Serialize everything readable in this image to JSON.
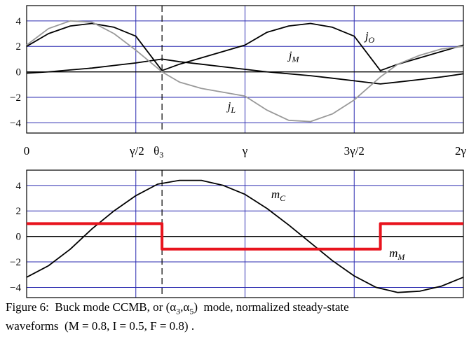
{
  "chart_data": [
    {
      "type": "line",
      "title": "",
      "xlabel": "",
      "ylabel": "",
      "xlim": [
        0,
        2
      ],
      "ylim": [
        -4.8,
        5.2
      ],
      "x_unit": "gamma",
      "y_ticks": [
        4,
        2,
        0,
        -2,
        -4
      ],
      "y_tick_labels": [
        "4",
        "2",
        "0",
        "−2",
        "−4"
      ],
      "x_ticks": [
        0,
        0.5,
        0.62,
        1,
        1.5,
        2
      ],
      "x_tick_labels": [
        "0",
        "γ/2",
        "θ",
        "γ",
        "3γ/2",
        "2γ"
      ],
      "x_tick_subscripts": [
        "",
        "",
        "3",
        "",
        "",
        ""
      ],
      "gridlines_x": [
        0.5,
        1,
        1.5
      ],
      "gridlines_y": [
        -4,
        -2,
        0,
        2,
        4
      ],
      "dashed_marker_x": 0.62,
      "grid": true,
      "series": [
        {
          "name": "j",
          "subscript": "O",
          "color": "#000000",
          "x": [
            0,
            0.1,
            0.2,
            0.3,
            0.4,
            0.5,
            0.62,
            0.7,
            0.8,
            0.9,
            1.0,
            1.1,
            1.2,
            1.3,
            1.4,
            1.5,
            1.62,
            1.7,
            1.8,
            1.9,
            2.0
          ],
          "y": [
            2.0,
            3.0,
            3.6,
            3.8,
            3.5,
            2.8,
            0.1,
            0.6,
            1.1,
            1.6,
            2.1,
            3.1,
            3.6,
            3.8,
            3.5,
            2.8,
            0.1,
            0.6,
            1.1,
            1.6,
            2.1
          ]
        },
        {
          "name": "j",
          "subscript": "M",
          "color": "#000000",
          "x": [
            0,
            0.1,
            0.2,
            0.3,
            0.4,
            0.5,
            0.62,
            0.7,
            0.8,
            0.9,
            1.0,
            1.1,
            1.2,
            1.3,
            1.4,
            1.5,
            1.62,
            1.7,
            1.8,
            1.9,
            2.0
          ],
          "y": [
            -0.1,
            0.0,
            0.15,
            0.3,
            0.5,
            0.7,
            1.0,
            0.8,
            0.6,
            0.4,
            0.2,
            0.0,
            -0.15,
            -0.3,
            -0.5,
            -0.7,
            -0.95,
            -0.8,
            -0.6,
            -0.4,
            -0.15
          ]
        },
        {
          "name": "j",
          "subscript": "L",
          "color": "#999999",
          "x": [
            0,
            0.1,
            0.2,
            0.3,
            0.4,
            0.5,
            0.62,
            0.7,
            0.8,
            0.9,
            1.0,
            1.1,
            1.2,
            1.3,
            1.4,
            1.5,
            1.62,
            1.7,
            1.8,
            1.9,
            2.0
          ],
          "y": [
            2.1,
            3.4,
            4.0,
            3.9,
            3.0,
            1.7,
            0.0,
            -0.8,
            -1.3,
            -1.6,
            -1.9,
            -3.0,
            -3.8,
            -3.9,
            -3.3,
            -2.2,
            -0.4,
            0.6,
            1.3,
            1.8,
            2.0
          ]
        }
      ],
      "annotations": [
        {
          "text": "j",
          "subscript": "O",
          "x": 1.55,
          "y": 2.5
        },
        {
          "text": "j",
          "subscript": "M",
          "x": 1.2,
          "y": 1.0
        },
        {
          "text": "j",
          "subscript": "L",
          "x": 0.92,
          "y": -3.0
        }
      ]
    },
    {
      "type": "line",
      "title": "",
      "xlabel": "",
      "ylabel": "",
      "xlim": [
        0,
        2
      ],
      "ylim": [
        -4.8,
        5.2
      ],
      "x_unit": "gamma",
      "y_ticks": [
        4,
        2,
        0,
        -2,
        -4
      ],
      "y_tick_labels": [
        "4",
        "2",
        "0",
        "−2",
        "−4"
      ],
      "gridlines_x": [
        0.5,
        1,
        1.5
      ],
      "gridlines_y": [
        -4,
        -2,
        0,
        2,
        4
      ],
      "dashed_marker_x": 0.62,
      "grid": true,
      "series": [
        {
          "name": "m",
          "subscript": "C",
          "color": "#000000",
          "x": [
            0,
            0.1,
            0.2,
            0.3,
            0.4,
            0.5,
            0.6,
            0.7,
            0.8,
            0.9,
            1.0,
            1.1,
            1.2,
            1.3,
            1.4,
            1.5,
            1.6,
            1.7,
            1.8,
            1.9,
            2.0
          ],
          "y": [
            -3.2,
            -2.3,
            -1.0,
            0.6,
            2.0,
            3.2,
            4.1,
            4.4,
            4.4,
            4.0,
            3.3,
            2.2,
            0.9,
            -0.5,
            -1.9,
            -3.1,
            -4.0,
            -4.4,
            -4.3,
            -3.9,
            -3.2
          ]
        },
        {
          "name": "m",
          "subscript": "M",
          "color": "#e8141e",
          "step": true,
          "x": [
            0,
            0.62,
            0.62,
            1.62,
            1.62,
            2.0
          ],
          "y": [
            1.0,
            1.0,
            -1.0,
            -1.0,
            1.0,
            1.0
          ]
        }
      ],
      "annotations": [
        {
          "text": "m",
          "subscript": "C",
          "x": 1.12,
          "y": 3.0
        },
        {
          "text": "m",
          "subscript": "M",
          "x": 1.66,
          "y": -1.6
        }
      ]
    }
  ],
  "caption": {
    "line1_a": "Figure 6:  Buck mode CCMB, or ",
    "line1_b": "(α",
    "line1_sub1": "3",
    "line1_c": ",α",
    "line1_sub2": "5",
    "line1_d": ")  mode, normalized steady-state",
    "line2": "waveforms  (M = 0.8, I = 0.5, F = 0.8) ."
  }
}
